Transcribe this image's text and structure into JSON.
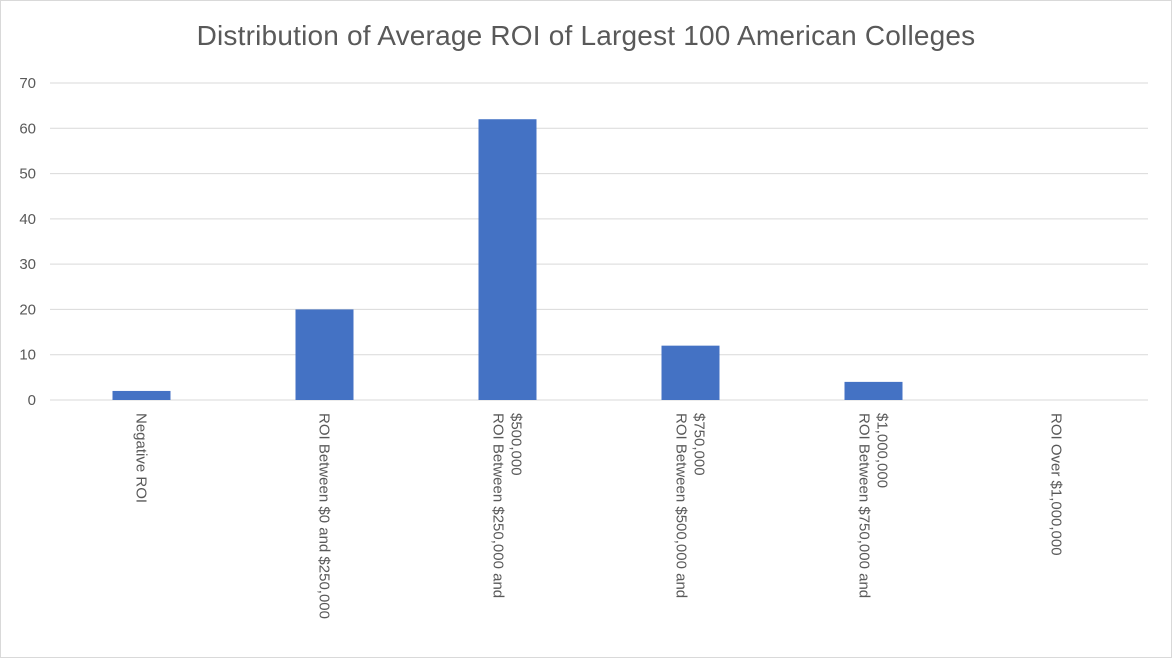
{
  "chart_data": {
    "type": "bar",
    "title": "Distribution of Average ROI of Largest 100 American Colleges",
    "categories": [
      [
        "Negative ROI"
      ],
      [
        "ROI Between $0 and $250,000"
      ],
      [
        "ROI Between $250,000 and",
        "$500,000"
      ],
      [
        "ROI Between $500,000 and",
        "$750,000"
      ],
      [
        "ROI Between $750,000 and",
        "$1,000,000"
      ],
      [
        "ROI Over $1,000,000"
      ]
    ],
    "values": [
      2,
      20,
      62,
      12,
      4,
      0
    ],
    "ylim": [
      0,
      70
    ],
    "yticks": [
      0,
      10,
      20,
      30,
      40,
      50,
      60,
      70
    ],
    "grid": true,
    "bar_color": "#4472c4",
    "grid_color": "#d9d9d9"
  }
}
